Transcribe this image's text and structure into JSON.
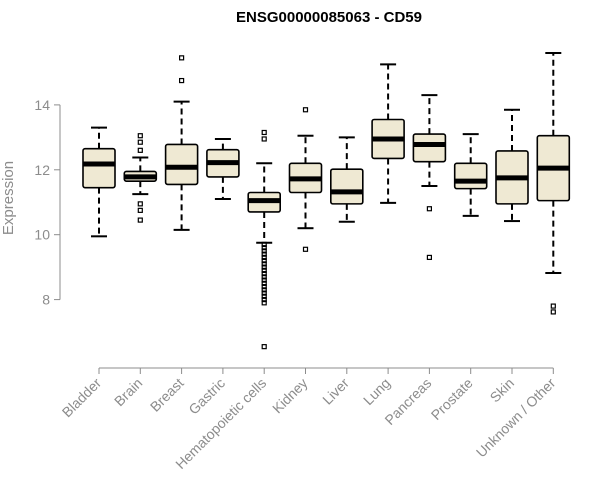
{
  "chart_data": {
    "type": "boxplot",
    "title": "ENSG00000085063 - CD59",
    "xlabel": "",
    "ylabel": "Expression",
    "ylim": [
      6.2,
      16.0
    ],
    "yticks": [
      8,
      10,
      12,
      14
    ],
    "box_color": "#efe9d3",
    "line_color": "#000000",
    "axis_color": "#8c8c8c",
    "categories": [
      "Bladder",
      "Brain",
      "Breast",
      "Gastric",
      "Hematopoietic cells",
      "Kidney",
      "Liver",
      "Lung",
      "Pancreas",
      "Prostate",
      "Skin",
      "Unknown / Other"
    ],
    "boxes": [
      {
        "name": "Bladder",
        "whisker_low": 9.95,
        "q1": 11.45,
        "median": 12.18,
        "q3": 12.65,
        "whisker_high": 13.3,
        "outliers": []
      },
      {
        "name": "Brain",
        "whisker_low": 11.25,
        "q1": 11.65,
        "median": 11.78,
        "q3": 11.95,
        "whisker_high": 12.38,
        "outliers": [
          12.6,
          12.85,
          13.05,
          10.95,
          10.75,
          10.45
        ]
      },
      {
        "name": "Breast",
        "whisker_low": 10.15,
        "q1": 11.55,
        "median": 12.08,
        "q3": 12.78,
        "whisker_high": 14.1,
        "outliers": [
          14.75,
          15.45
        ]
      },
      {
        "name": "Gastric",
        "whisker_low": 11.1,
        "q1": 11.78,
        "median": 12.22,
        "q3": 12.62,
        "whisker_high": 12.95,
        "outliers": []
      },
      {
        "name": "Hematopoietic cells",
        "whisker_low": 9.75,
        "q1": 10.7,
        "median": 11.05,
        "q3": 11.3,
        "whisker_high": 12.2,
        "outliers": [
          12.95,
          13.15,
          9.7,
          9.6,
          9.5,
          9.4,
          9.3,
          9.2,
          9.1,
          9.0,
          8.9,
          8.8,
          8.7,
          8.6,
          8.5,
          8.4,
          8.3,
          8.2,
          8.1,
          8.0,
          7.9,
          6.55
        ]
      },
      {
        "name": "Kidney",
        "whisker_low": 10.2,
        "q1": 11.3,
        "median": 11.72,
        "q3": 12.2,
        "whisker_high": 13.05,
        "outliers": [
          13.85,
          9.55
        ]
      },
      {
        "name": "Liver",
        "whisker_low": 10.4,
        "q1": 10.95,
        "median": 11.32,
        "q3": 12.02,
        "whisker_high": 13.0,
        "outliers": []
      },
      {
        "name": "Lung",
        "whisker_low": 10.98,
        "q1": 12.35,
        "median": 12.95,
        "q3": 13.55,
        "whisker_high": 15.25,
        "outliers": []
      },
      {
        "name": "Pancreas",
        "whisker_low": 11.5,
        "q1": 12.25,
        "median": 12.78,
        "q3": 13.1,
        "whisker_high": 14.3,
        "outliers": [
          10.8,
          9.3
        ]
      },
      {
        "name": "Prostate",
        "whisker_low": 10.58,
        "q1": 11.42,
        "median": 11.65,
        "q3": 12.2,
        "whisker_high": 13.1,
        "outliers": []
      },
      {
        "name": "Skin",
        "whisker_low": 10.42,
        "q1": 10.95,
        "median": 11.75,
        "q3": 12.58,
        "whisker_high": 13.85,
        "outliers": []
      },
      {
        "name": "Unknown / Other",
        "whisker_low": 8.82,
        "q1": 11.05,
        "median": 12.05,
        "q3": 13.05,
        "whisker_high": 15.6,
        "outliers": [
          7.8,
          7.62
        ]
      }
    ]
  }
}
